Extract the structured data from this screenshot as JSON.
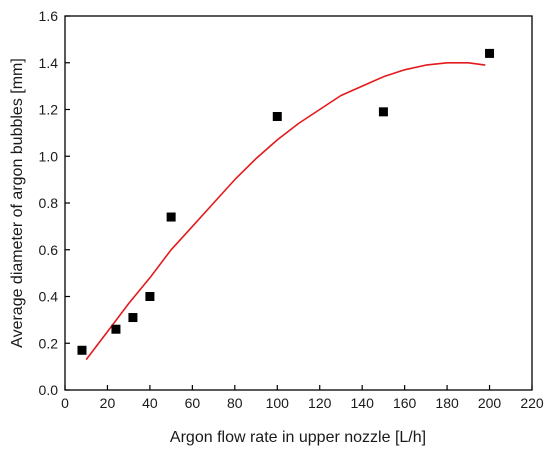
{
  "chart_data": {
    "type": "scatter",
    "xlabel": "Argon flow rate in upper nozzle [L/h]",
    "ylabel": "Average diameter of argon bubbles [mm]",
    "xlim": [
      0,
      220
    ],
    "ylim": [
      0,
      1.6
    ],
    "x_ticks": [
      0,
      20,
      40,
      60,
      80,
      100,
      120,
      140,
      160,
      180,
      200,
      220
    ],
    "y_ticks": [
      "0.0",
      "0.2",
      "0.4",
      "0.6",
      "0.8",
      "1.0",
      "1.2",
      "1.4",
      "1.6"
    ],
    "grid": false,
    "legend": "none",
    "series": [
      {
        "kind": "scatter",
        "marker": "square",
        "color": "#000000",
        "points": [
          {
            "x": 8,
            "y": 0.17
          },
          {
            "x": 24,
            "y": 0.26
          },
          {
            "x": 32,
            "y": 0.31
          },
          {
            "x": 40,
            "y": 0.4
          },
          {
            "x": 50,
            "y": 0.74
          },
          {
            "x": 100,
            "y": 1.17
          },
          {
            "x": 150,
            "y": 1.19
          },
          {
            "x": 200,
            "y": 1.44
          }
        ]
      },
      {
        "kind": "line",
        "color": "#e31a1c",
        "points": [
          {
            "x": 10,
            "y": 0.13
          },
          {
            "x": 20,
            "y": 0.25
          },
          {
            "x": 30,
            "y": 0.37
          },
          {
            "x": 40,
            "y": 0.48
          },
          {
            "x": 50,
            "y": 0.6
          },
          {
            "x": 60,
            "y": 0.7
          },
          {
            "x": 70,
            "y": 0.8
          },
          {
            "x": 80,
            "y": 0.9
          },
          {
            "x": 90,
            "y": 0.99
          },
          {
            "x": 100,
            "y": 1.07
          },
          {
            "x": 110,
            "y": 1.14
          },
          {
            "x": 120,
            "y": 1.2
          },
          {
            "x": 130,
            "y": 1.26
          },
          {
            "x": 140,
            "y": 1.3
          },
          {
            "x": 150,
            "y": 1.34
          },
          {
            "x": 160,
            "y": 1.37
          },
          {
            "x": 170,
            "y": 1.39
          },
          {
            "x": 180,
            "y": 1.4
          },
          {
            "x": 190,
            "y": 1.4
          },
          {
            "x": 198,
            "y": 1.39
          }
        ]
      }
    ]
  }
}
